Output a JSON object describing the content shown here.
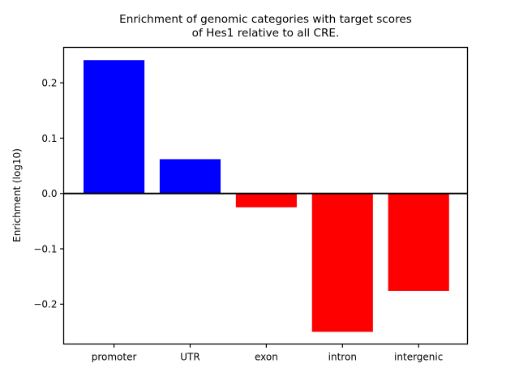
{
  "chart_data": {
    "type": "bar",
    "title_line1": "Enrichment of genomic categories with target scores",
    "title_line2": "of Hes1 relative to all CRE.",
    "ylabel": "Enrichment (log10)",
    "xlabel": "",
    "categories": [
      "promoter",
      "UTR",
      "exon",
      "intron",
      "intergenic"
    ],
    "values": [
      0.241,
      0.062,
      -0.025,
      -0.25,
      -0.176
    ],
    "bar_width": 0.8,
    "positive_color": "#0000ff",
    "negative_color": "#ff0000",
    "yticks": [
      0.2,
      0.1,
      0.0,
      -0.1,
      -0.2
    ],
    "ylim": [
      -0.272,
      0.264
    ],
    "xlim": [
      -0.661,
      4.642
    ],
    "zero_line": {
      "color": "#000000",
      "width": 2
    },
    "axis_color": "#000000",
    "grid": false,
    "legend": false
  }
}
